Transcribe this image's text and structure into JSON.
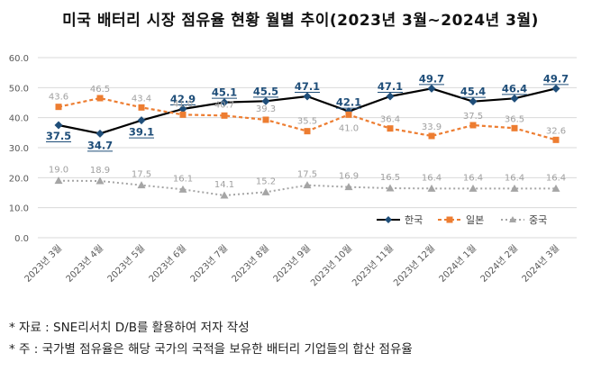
{
  "chart_data": {
    "type": "line",
    "title": "미국 배터리 시장 점유율 현황 월별 추이(2023년 3월~2024년 3월)",
    "categories": [
      "2023년 3월",
      "2023년 4월",
      "2023년 5월",
      "2023년 6월",
      "2023년 7월",
      "2023년 8월",
      "2023년 9월",
      "2023년 10월",
      "2023년 11월",
      "2023년 12월",
      "2024년 1월",
      "2024년 2월",
      "2024년 3월"
    ],
    "yticks": [
      "0.0",
      "10.0",
      "20.0",
      "30.0",
      "40.0",
      "50.0",
      "60.0"
    ],
    "ylim": [
      0,
      60
    ],
    "series": [
      {
        "name": "한국",
        "color": "#000000",
        "values": [
          37.5,
          34.7,
          39.1,
          42.9,
          45.1,
          45.5,
          47.1,
          42.1,
          47.1,
          49.7,
          45.4,
          46.4,
          49.7
        ],
        "labels": [
          "37.5",
          "34.7",
          "39.1",
          "42.9",
          "45.1",
          "45.5",
          "47.1",
          "42.1",
          "47.1",
          "49.7",
          "45.4",
          "46.4",
          "49.7"
        ]
      },
      {
        "name": "일본",
        "color": "#ED7D31",
        "values": [
          43.6,
          46.5,
          43.4,
          41.0,
          40.7,
          39.3,
          35.5,
          41.0,
          36.4,
          33.9,
          37.5,
          36.5,
          32.6
        ],
        "labels": [
          "43.6",
          "46.5",
          "43.4",
          "41.0",
          "40.7",
          "39.3",
          "35.5",
          "41.0",
          "36.4",
          "33.9",
          "37.5",
          "36.5",
          "32.6"
        ]
      },
      {
        "name": "중국",
        "color": "#A5A5A5",
        "values": [
          19.0,
          18.9,
          17.5,
          16.1,
          14.1,
          15.2,
          17.5,
          16.9,
          16.5,
          16.4,
          16.4,
          16.4,
          16.4
        ],
        "labels": [
          "19.0",
          "18.9",
          "17.5",
          "16.1",
          "14.1",
          "15.2",
          "17.5",
          "16.9",
          "16.5",
          "16.4",
          "16.4",
          "16.4",
          "16.4"
        ]
      }
    ],
    "legend": "inside-bottom-right",
    "grid": true
  },
  "notes": {
    "source": "* 자료 : SNE리서치 D/B를 활용하여 저자 작성",
    "remark": "* 주 : 국가별 점유율은 해당 국가의 국적을 보유한 배터리 기업들의 합산 점유율"
  },
  "colors": {
    "korea_label": "#1F4E79",
    "other_label": "#A0A0A0"
  }
}
